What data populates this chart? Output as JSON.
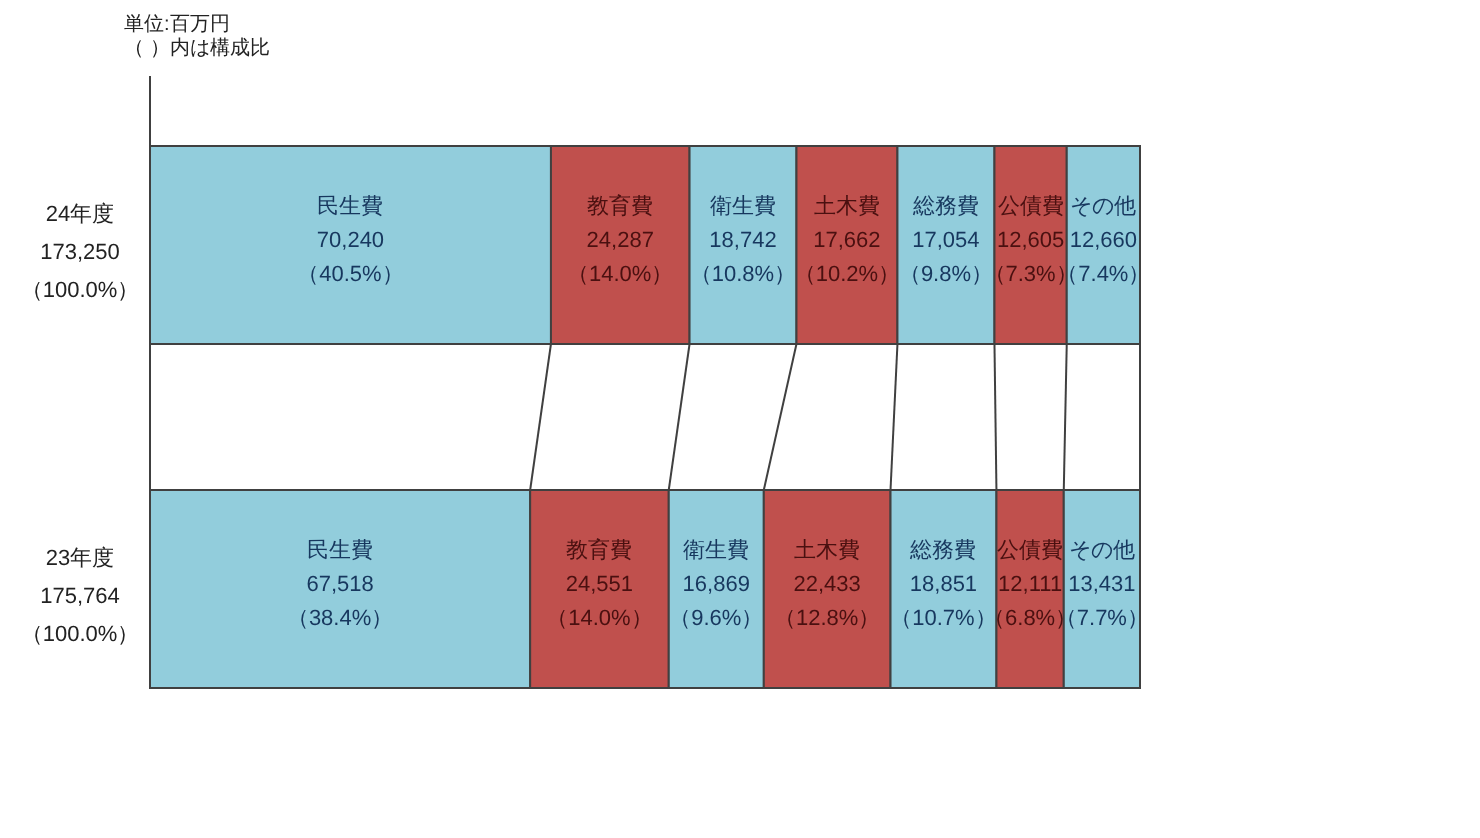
{
  "chart_data": {
    "type": "bar",
    "orientation": "horizontal",
    "stacked": true,
    "categories": [
      "24年度\n173,250\n（100.0%）",
      "23年度\n175,764\n（100.0%）"
    ],
    "series": [
      {
        "name": "民生費",
        "color": "#92cddc",
        "values": [
          40.5,
          38.4
        ],
        "value_labels": [
          "70,240\n（40.5%）",
          "67,518\n（38.4%）"
        ]
      },
      {
        "name": "教育費",
        "color": "#c0504d",
        "values": [
          14.0,
          14.0
        ],
        "value_labels": [
          "24,287\n（14.0%）",
          "24,551\n（14.0%）"
        ]
      },
      {
        "name": "衛生費",
        "color": "#92cddc",
        "values": [
          10.8,
          9.6
        ],
        "value_labels": [
          "18,742\n（10.8%）",
          "16,869\n（9.6%）"
        ]
      },
      {
        "name": "土木費",
        "color": "#c0504d",
        "values": [
          10.2,
          12.8
        ],
        "value_labels": [
          "17,662\n（10.2%）",
          "22,433\n（12.8%）"
        ]
      },
      {
        "name": "総務費",
        "color": "#92cddc",
        "values": [
          9.8,
          10.7
        ],
        "value_labels": [
          "17,054\n（9.8%）",
          "18,851\n（10.7%）"
        ]
      },
      {
        "name": "公債費",
        "color": "#c0504d",
        "values": [
          7.3,
          6.8
        ],
        "value_labels": [
          "12,605\n（7.3%）",
          "12,111\n（6.8%）"
        ]
      },
      {
        "name": "その他",
        "color": "#92cddc",
        "values": [
          7.4,
          7.7
        ],
        "value_labels": [
          "12,660\n（7.4%）",
          "13,431\n（7.7%）"
        ]
      }
    ],
    "annotations": [
      "単位:百万円",
      "（ ）内は構成比"
    ]
  }
}
